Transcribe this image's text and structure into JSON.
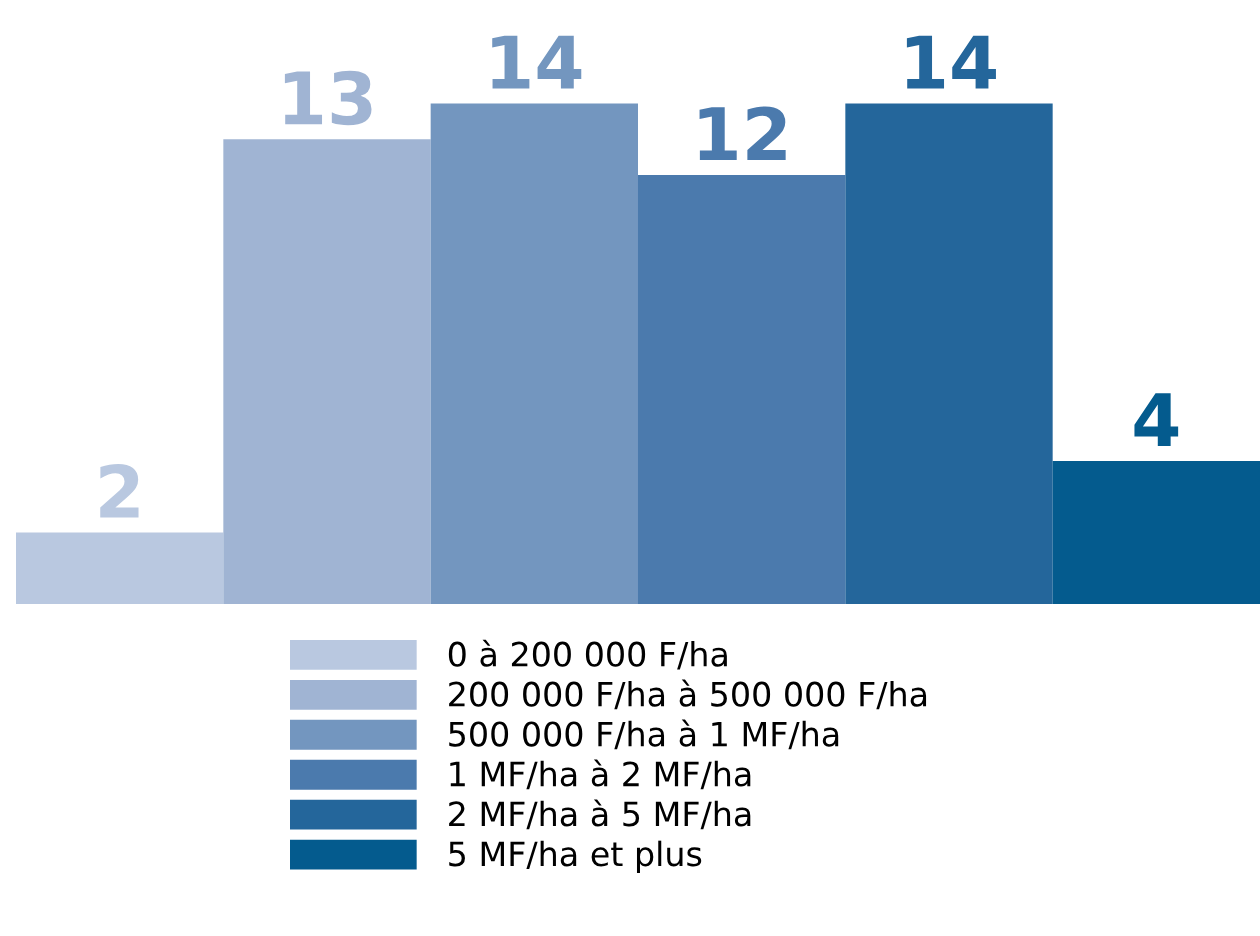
{
  "chart_data": {
    "type": "bar",
    "categories": [
      null
    ],
    "series": [
      {
        "name": "0 à 200 000 F/ha",
        "color": "#b9c8e0",
        "values": [
          2
        ]
      },
      {
        "name": "200 000 F/ha à 500 000 F/ha",
        "color": "#a0b4d3",
        "values": [
          13
        ]
      },
      {
        "name": "500 000 F/ha à 1 MF/ha",
        "color": "#7396bf",
        "values": [
          14
        ]
      },
      {
        "name": "1 MF/ha à 2 MF/ha",
        "color": "#4b7aad",
        "values": [
          12
        ]
      },
      {
        "name": "2 MF/ha à 5 MF/ha",
        "color": "#24669b",
        "values": [
          14
        ]
      },
      {
        "name": "5 MF/ha et plus",
        "color": "#045b8e",
        "values": [
          4
        ]
      }
    ],
    "data_labels": true,
    "legend": "bottom",
    "grid": false
  }
}
